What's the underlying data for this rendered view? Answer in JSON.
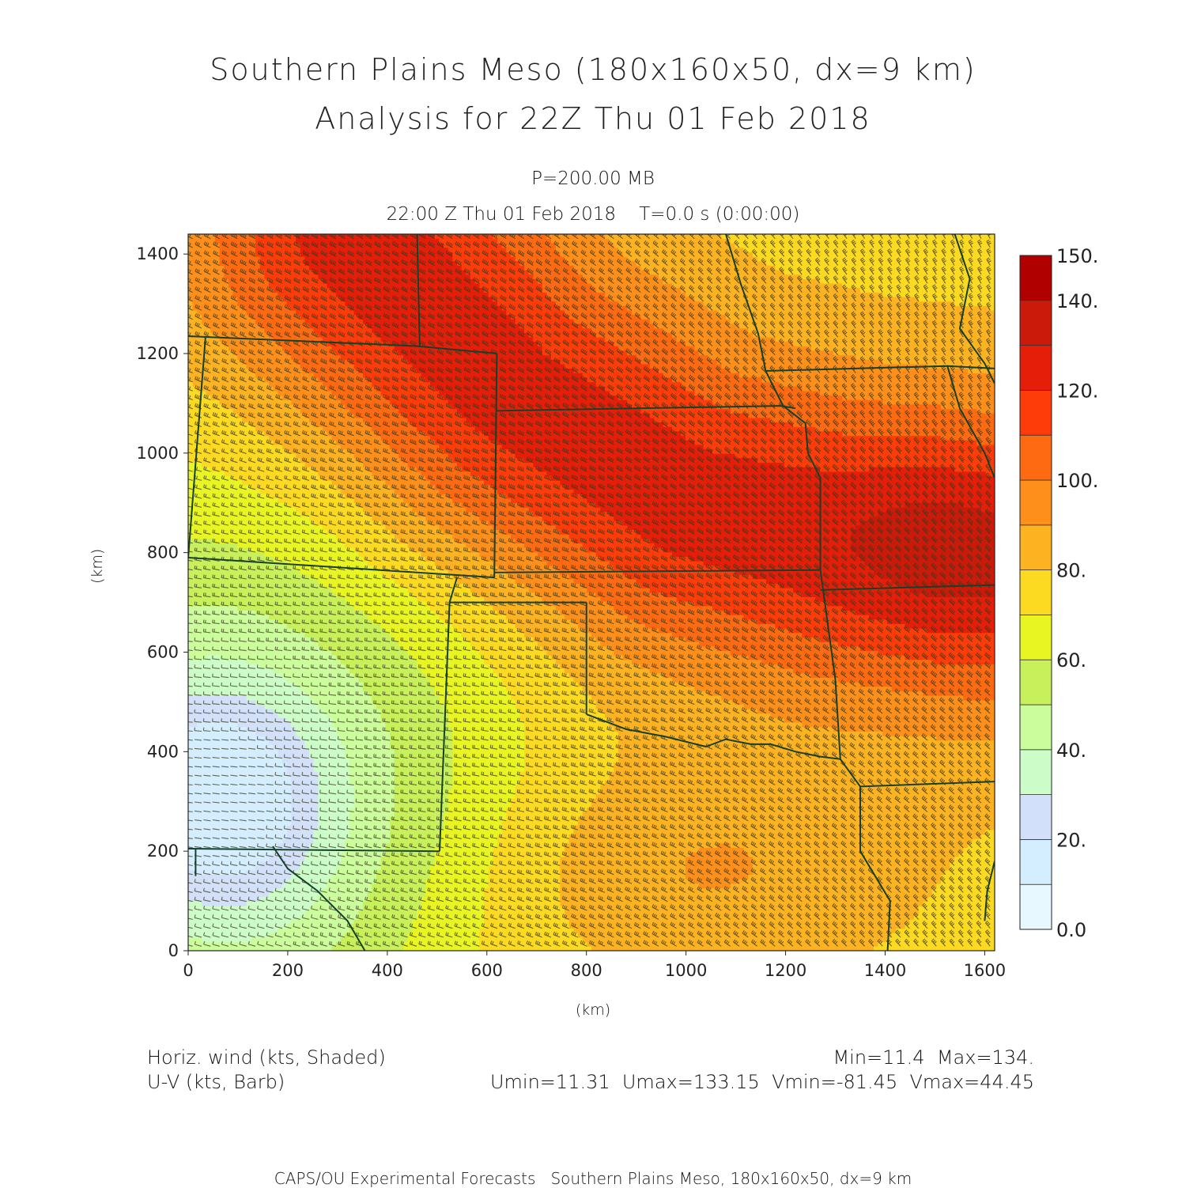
{
  "chart_data": {
    "type": "heatmap",
    "title": "Southern Plains Meso (180x160x50, dx=9 km)",
    "subtitle": "Analysis for 22Z Thu 01 Feb 2018",
    "level_label": "P=200.00 MB",
    "time_label": "22:00 Z Thu 01 Feb 2018    T=0.0 s (0:00:00)",
    "xlabel": "(km)",
    "ylabel": "(km)",
    "xlim": [
      0,
      1620
    ],
    "ylim": [
      0,
      1440
    ],
    "x_ticks": [
      0,
      200,
      400,
      600,
      800,
      1000,
      1200,
      1400,
      1600
    ],
    "y_ticks": [
      0,
      200,
      400,
      600,
      800,
      1000,
      1200,
      1400
    ],
    "colorbar": {
      "levels": [
        0,
        10,
        20,
        30,
        40,
        50,
        60,
        70,
        80,
        90,
        100,
        110,
        120,
        130,
        140,
        150
      ],
      "labels": [
        "0.0",
        "20.",
        "40.",
        "60.",
        "80.",
        "100.",
        "120.",
        "140.",
        "150."
      ],
      "label_values": [
        0,
        20,
        40,
        60,
        80,
        100,
        120,
        140,
        150
      ],
      "colors": [
        "#e8f8ff",
        "#d4eeff",
        "#d2e0fa",
        "#ccfcc8",
        "#ccfd9c",
        "#c7f05a",
        "#e8f523",
        "#fdda22",
        "#fdb222",
        "#fd8f1a",
        "#fd6a12",
        "#fd3c0a",
        "#e51e0a",
        "#cc1a0a",
        "#b00000"
      ]
    },
    "field": {
      "name": "Horiz. wind",
      "units": "kts",
      "jet_axis_km": [
        [
          330,
          1440
        ],
        [
          650,
          1110
        ],
        [
          1000,
          900
        ],
        [
          1300,
          830
        ],
        [
          1620,
          790
        ]
      ],
      "jet_core_kts": 134,
      "background_kts": 75,
      "south_max_km": [
        1020,
        160
      ],
      "south_max_kts": 92,
      "calm_center_km": [
        60,
        300
      ],
      "calm_center_kts": 15
    },
    "annotations": {
      "left_1": "Horiz. wind (kts, Shaded)",
      "left_2": "U-V (kts, Barb)",
      "right_1": "Min=11.4  Max=134.",
      "right_2": "Umin=11.31  Umax=133.15  Vmin=-81.45  Vmax=44.45"
    },
    "footer": "CAPS/OU Experimental Forecasts   Southern Plains Meso, 180x160x50, dx=9 km",
    "boundary_color": "#16402a",
    "barb_color": "#3a3a1e"
  }
}
